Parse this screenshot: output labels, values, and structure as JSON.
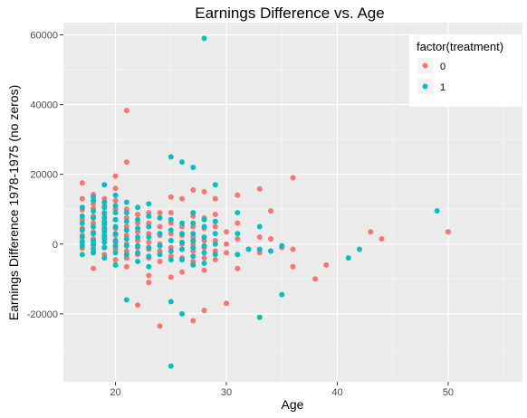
{
  "chart_data": {
    "type": "scatter",
    "title": "Earnings Difference vs. Age",
    "xlabel": "Age",
    "ylabel": "Earnings Difference 1978-1975 (no zeros)",
    "xlim": [
      15.3,
      56.7
    ],
    "ylim": [
      -39500,
      63500
    ],
    "xticks": [
      20,
      30,
      40,
      50
    ],
    "yticks": [
      -20000,
      0,
      20000,
      40000,
      60000
    ],
    "xtick_labels": [
      "20",
      "30",
      "40",
      "50"
    ],
    "ytick_labels": [
      "-20000",
      "0",
      "20000",
      "40000",
      "60000"
    ],
    "grid": true,
    "legend": {
      "title": "factor(treatment)",
      "position": "top-right"
    },
    "series": [
      {
        "name": "0",
        "color": "#F8766D",
        "points": [
          [
            17,
            17500
          ],
          [
            17,
            13000
          ],
          [
            17,
            9800
          ],
          [
            17,
            7000
          ],
          [
            17,
            4500
          ],
          [
            17,
            2500
          ],
          [
            17,
            800
          ],
          [
            17,
            -1200
          ],
          [
            18,
            14200
          ],
          [
            18,
            11500
          ],
          [
            18,
            10200
          ],
          [
            18,
            8000
          ],
          [
            18,
            6000
          ],
          [
            18,
            3500
          ],
          [
            18,
            1500
          ],
          [
            18,
            -500
          ],
          [
            18,
            -2500
          ],
          [
            18,
            -7000
          ],
          [
            19,
            13000
          ],
          [
            19,
            11000
          ],
          [
            19,
            8500
          ],
          [
            19,
            6000
          ],
          [
            19,
            4000
          ],
          [
            19,
            2000
          ],
          [
            19,
            -1000
          ],
          [
            19,
            -3000
          ],
          [
            20,
            19500
          ],
          [
            20,
            16000
          ],
          [
            20,
            12500
          ],
          [
            20,
            10000
          ],
          [
            20,
            7000
          ],
          [
            20,
            4500
          ],
          [
            20,
            2500
          ],
          [
            20,
            500
          ],
          [
            20,
            -1500
          ],
          [
            20,
            -4500
          ],
          [
            21,
            38300
          ],
          [
            21,
            23500
          ],
          [
            21,
            10000
          ],
          [
            21,
            7500
          ],
          [
            21,
            5000
          ],
          [
            21,
            2500
          ],
          [
            21,
            0
          ],
          [
            21,
            -2000
          ],
          [
            21,
            -4000
          ],
          [
            21,
            -6500
          ],
          [
            22,
            8500
          ],
          [
            22,
            6000
          ],
          [
            22,
            3500
          ],
          [
            22,
            1000
          ],
          [
            22,
            -1000
          ],
          [
            22,
            -3000
          ],
          [
            22,
            -17500
          ],
          [
            23,
            9000
          ],
          [
            23,
            6000
          ],
          [
            23,
            3000
          ],
          [
            23,
            500
          ],
          [
            23,
            -1500
          ],
          [
            23,
            -4000
          ],
          [
            23,
            -9000
          ],
          [
            23,
            -11000
          ],
          [
            24,
            9000
          ],
          [
            24,
            7500
          ],
          [
            24,
            5000
          ],
          [
            24,
            2500
          ],
          [
            24,
            0
          ],
          [
            24,
            -2000
          ],
          [
            24,
            -5000
          ],
          [
            24,
            -23500
          ],
          [
            25,
            13500
          ],
          [
            25,
            9000
          ],
          [
            25,
            6000
          ],
          [
            25,
            3000
          ],
          [
            25,
            1000
          ],
          [
            25,
            -1000
          ],
          [
            25,
            -3500
          ],
          [
            25,
            -9500
          ],
          [
            26,
            13000
          ],
          [
            26,
            5000
          ],
          [
            26,
            2500
          ],
          [
            26,
            0
          ],
          [
            26,
            -1500
          ],
          [
            26,
            -4000
          ],
          [
            26,
            -8000
          ],
          [
            27,
            15500
          ],
          [
            27,
            8000
          ],
          [
            27,
            5000
          ],
          [
            27,
            2000
          ],
          [
            27,
            0
          ],
          [
            27,
            -2000
          ],
          [
            27,
            -5000
          ],
          [
            27,
            -22000
          ],
          [
            28,
            15000
          ],
          [
            28,
            7500
          ],
          [
            28,
            4500
          ],
          [
            28,
            1000
          ],
          [
            28,
            -1000
          ],
          [
            28,
            -4000
          ],
          [
            28,
            -7500
          ],
          [
            28,
            -19000
          ],
          [
            29,
            13000
          ],
          [
            29,
            8500
          ],
          [
            29,
            5000
          ],
          [
            29,
            1000
          ],
          [
            29,
            -2000
          ],
          [
            29,
            -4500
          ],
          [
            30,
            3500
          ],
          [
            30,
            0
          ],
          [
            30,
            -2500
          ],
          [
            30,
            -17000
          ],
          [
            31,
            14000
          ],
          [
            31,
            6000
          ],
          [
            31,
            1500
          ],
          [
            31,
            -3000
          ],
          [
            31,
            -7000
          ],
          [
            32,
            -1500
          ],
          [
            33,
            15800
          ],
          [
            33,
            2000
          ],
          [
            33,
            -2500
          ],
          [
            34,
            9500
          ],
          [
            34,
            1500
          ],
          [
            34,
            -2000
          ],
          [
            35,
            -1000
          ],
          [
            36,
            19000
          ],
          [
            36,
            -1500
          ],
          [
            36,
            -6500
          ],
          [
            38,
            -10000
          ],
          [
            39,
            -6000
          ],
          [
            43,
            3500
          ],
          [
            44,
            1500
          ],
          [
            50,
            3500
          ]
        ]
      },
      {
        "name": "1",
        "color": "#00BFC4",
        "points": [
          [
            17,
            10500
          ],
          [
            17,
            8000
          ],
          [
            17,
            6000
          ],
          [
            17,
            4000
          ],
          [
            17,
            2000
          ],
          [
            17,
            500
          ],
          [
            17,
            -500
          ],
          [
            17,
            -3000
          ],
          [
            18,
            13500
          ],
          [
            18,
            12500
          ],
          [
            18,
            9500
          ],
          [
            18,
            7500
          ],
          [
            18,
            5000
          ],
          [
            18,
            3000
          ],
          [
            18,
            1000
          ],
          [
            18,
            0
          ],
          [
            18,
            -1500
          ],
          [
            18,
            -2500
          ],
          [
            19,
            17000
          ],
          [
            19,
            12000
          ],
          [
            19,
            10500
          ],
          [
            19,
            9000
          ],
          [
            19,
            7500
          ],
          [
            19,
            6500
          ],
          [
            19,
            5500
          ],
          [
            19,
            4500
          ],
          [
            19,
            3500
          ],
          [
            19,
            2500
          ],
          [
            19,
            1500
          ],
          [
            19,
            500
          ],
          [
            19,
            -1000
          ],
          [
            19,
            -4000
          ],
          [
            20,
            14000
          ],
          [
            20,
            11000
          ],
          [
            20,
            9000
          ],
          [
            20,
            7000
          ],
          [
            20,
            5000
          ],
          [
            20,
            3000
          ],
          [
            20,
            1000
          ],
          [
            20,
            -500
          ],
          [
            20,
            -2500
          ],
          [
            20,
            -6000
          ],
          [
            21,
            12000
          ],
          [
            21,
            9000
          ],
          [
            21,
            6500
          ],
          [
            21,
            4000
          ],
          [
            21,
            1500
          ],
          [
            21,
            -500
          ],
          [
            21,
            -3000
          ],
          [
            21,
            -16000
          ],
          [
            22,
            10500
          ],
          [
            22,
            7000
          ],
          [
            22,
            4500
          ],
          [
            22,
            2000
          ],
          [
            22,
            -500
          ],
          [
            22,
            -2500
          ],
          [
            22,
            -5000
          ],
          [
            23,
            11500
          ],
          [
            23,
            8000
          ],
          [
            23,
            5000
          ],
          [
            23,
            2000
          ],
          [
            23,
            -1000
          ],
          [
            23,
            -3500
          ],
          [
            23,
            -6500
          ],
          [
            24,
            7500
          ],
          [
            24,
            3000
          ],
          [
            24,
            -500
          ],
          [
            24,
            -3000
          ],
          [
            25,
            25000
          ],
          [
            25,
            7000
          ],
          [
            25,
            4000
          ],
          [
            25,
            1000
          ],
          [
            25,
            -2000
          ],
          [
            25,
            -4500
          ],
          [
            25,
            -16500
          ],
          [
            25,
            -35000
          ],
          [
            26,
            23500
          ],
          [
            26,
            6000
          ],
          [
            26,
            3000
          ],
          [
            26,
            500
          ],
          [
            26,
            -1500
          ],
          [
            26,
            -4500
          ],
          [
            26,
            -20000
          ],
          [
            27,
            22000
          ],
          [
            27,
            9000
          ],
          [
            27,
            6000
          ],
          [
            27,
            3000
          ],
          [
            27,
            1000
          ],
          [
            27,
            -1000
          ],
          [
            27,
            -3500
          ],
          [
            27,
            -6000
          ],
          [
            28,
            59000
          ],
          [
            28,
            7000
          ],
          [
            28,
            5000
          ],
          [
            28,
            2000
          ],
          [
            28,
            -500
          ],
          [
            28,
            -2500
          ],
          [
            28,
            -5500
          ],
          [
            29,
            17000
          ],
          [
            29,
            6500
          ],
          [
            29,
            3000
          ],
          [
            29,
            0
          ],
          [
            29,
            -3000
          ],
          [
            31,
            9000
          ],
          [
            31,
            3000
          ],
          [
            31,
            -3000
          ],
          [
            32,
            -1500
          ],
          [
            33,
            5000
          ],
          [
            33,
            -1500
          ],
          [
            33,
            -21000
          ],
          [
            34,
            -2000
          ],
          [
            35,
            -500
          ],
          [
            35,
            -14500
          ],
          [
            41,
            -4000
          ],
          [
            42,
            -1500
          ],
          [
            49,
            9500
          ]
        ]
      }
    ]
  }
}
